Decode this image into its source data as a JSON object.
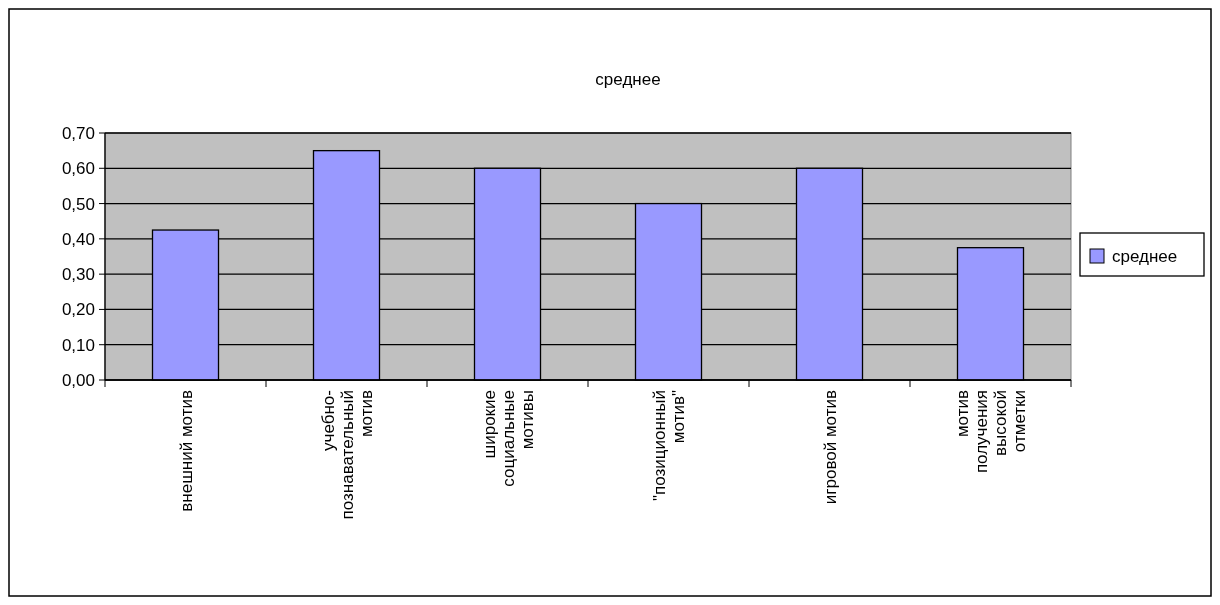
{
  "chart_data": {
    "type": "bar",
    "title": "среднее",
    "categories": [
      "внешний мотив",
      "учебно-познавательный мотив",
      "широкие социальные мотивы",
      "\"позиционный мотив\"",
      "игровой мотив",
      "мотив получения высокой отметки"
    ],
    "series": [
      {
        "name": "среднее",
        "color": "#9999ff",
        "values": [
          0.425,
          0.65,
          0.6,
          0.5,
          0.6,
          0.375
        ]
      }
    ],
    "ylim": [
      0,
      0.7
    ],
    "yticks": [
      {
        "value": 0,
        "label": "0,00"
      },
      {
        "value": 0.1,
        "label": "0,10"
      },
      {
        "value": 0.2,
        "label": "0,20"
      },
      {
        "value": 0.3,
        "label": "0,30"
      },
      {
        "value": 0.4,
        "label": "0,40"
      },
      {
        "value": 0.5,
        "label": "0,50"
      },
      {
        "value": 0.6,
        "label": "0,60"
      },
      {
        "value": 0.7,
        "label": "0,70"
      }
    ],
    "grid": "y",
    "legend": "right"
  }
}
